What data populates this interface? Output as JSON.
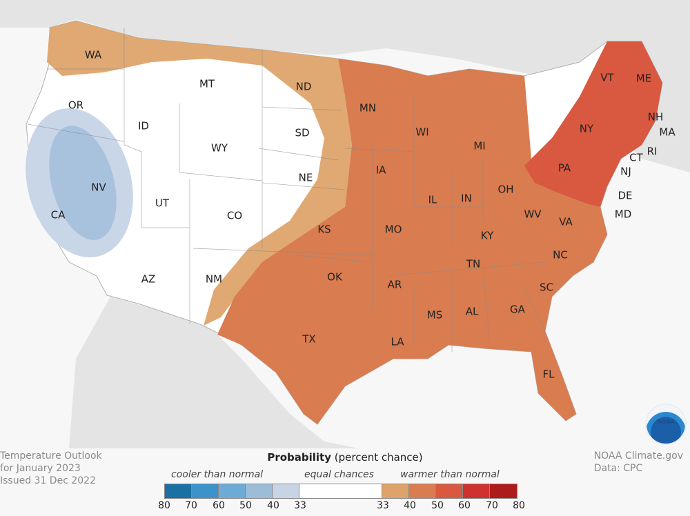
{
  "map": {
    "colors": {
      "background": "#f7f7f7",
      "land_outside": "#e4e4e4",
      "equal": "#ffffff",
      "warm_33_40": "#dea36a",
      "warm_40_50": "#d97c50",
      "warm_50_60": "#d95840",
      "cool_33_40": "#c9d6e7",
      "cool_40_50": "#a8c2dd",
      "border": "#b0b0b0"
    },
    "states": [
      "WA",
      "OR",
      "CA",
      "NV",
      "ID",
      "MT",
      "WY",
      "UT",
      "AZ",
      "CO",
      "NM",
      "ND",
      "SD",
      "NE",
      "KS",
      "OK",
      "TX",
      "MN",
      "IA",
      "MO",
      "AR",
      "LA",
      "WI",
      "IL",
      "MI",
      "IN",
      "OH",
      "KY",
      "TN",
      "MS",
      "AL",
      "GA",
      "FL",
      "SC",
      "NC",
      "VA",
      "WV",
      "PA",
      "NY",
      "VT",
      "ME",
      "NH",
      "MA",
      "RI",
      "CT",
      "NJ",
      "DE",
      "MD"
    ]
  },
  "footer": {
    "line1": "Temperature Outlook",
    "line2": "for January 2023",
    "line3": "Issued 31 Dec 2022",
    "credit1": "NOAA Climate.gov",
    "credit2": "Data: CPC"
  },
  "legend": {
    "title_bold": "Probability",
    "title_rest": " (percent chance)",
    "cooler": "cooler than normal",
    "equal": "equal chances",
    "warmer": "warmer than normal",
    "ticks": [
      "80",
      "70",
      "60",
      "50",
      "40",
      "33",
      "33",
      "40",
      "50",
      "60",
      "70",
      "80"
    ],
    "swatches": [
      "#1a6fa3",
      "#3c93cc",
      "#6eaad6",
      "#9dbcd8",
      "#c6d4e6",
      "#ffffff",
      "#dea36a",
      "#d97c50",
      "#d95840",
      "#cf3030",
      "#ad1c1c"
    ]
  },
  "logo": {
    "text": "NOAA"
  }
}
